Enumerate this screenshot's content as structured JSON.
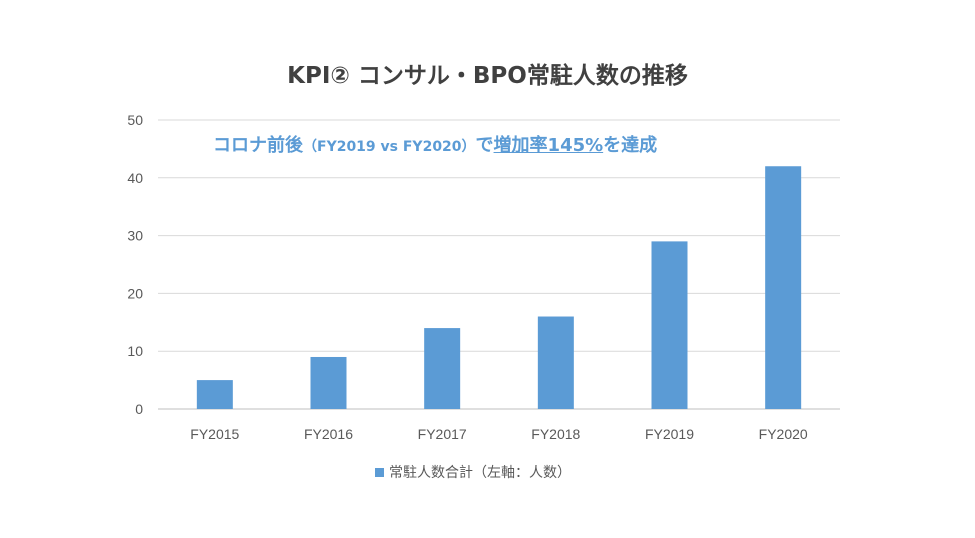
{
  "chart_data": {
    "type": "bar",
    "title": "KPI② コンサル・BPO常駐人数の推移",
    "annotation": {
      "part1": "コロナ前後",
      "part2": "（FY2019 vs FY2020）",
      "part3": "で",
      "part4": "増加率145%",
      "part5": "を達成"
    },
    "categories": [
      "FY2015",
      "FY2016",
      "FY2017",
      "FY2018",
      "FY2019",
      "FY2020"
    ],
    "series": [
      {
        "name": "常駐人数合計（左軸：人数）",
        "values": [
          5,
          9,
          14,
          16,
          29,
          42
        ],
        "color": "#5B9BD5"
      }
    ],
    "ylim": [
      0,
      50
    ],
    "yticks": [
      0,
      10,
      20,
      30,
      40,
      50
    ],
    "grid": true,
    "legend": "bottom"
  }
}
